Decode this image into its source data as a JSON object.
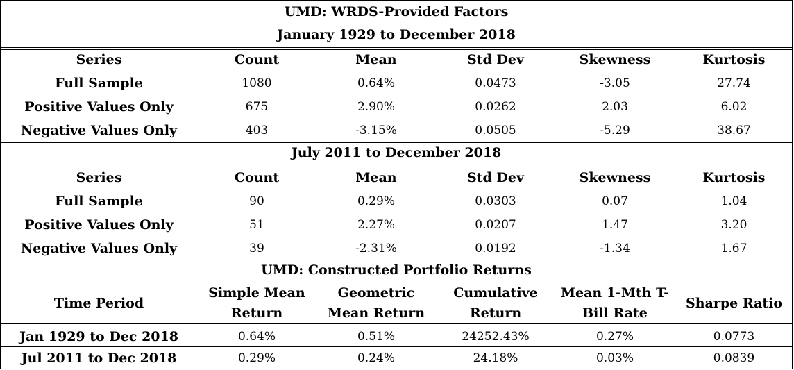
{
  "table_title": "UMD: WRDS-Provided Factors",
  "period1": {
    "title": "January 1929 to December 2018",
    "headers": [
      "Series",
      "Count",
      "Mean",
      "Std Dev",
      "Skewness",
      "Kurtosis"
    ],
    "rows": [
      {
        "series": "Full Sample",
        "count": "1080",
        "mean": "0.64%",
        "std": "0.0473",
        "skew": "-3.05",
        "kurt": "27.74"
      },
      {
        "series": "Positive Values Only",
        "count": "675",
        "mean": "2.90%",
        "std": "0.0262",
        "skew": "2.03",
        "kurt": "6.02"
      },
      {
        "series": "Negative Values Only",
        "count": "403",
        "mean": "-3.15%",
        "std": "0.0505",
        "skew": "-5.29",
        "kurt": "38.67"
      }
    ]
  },
  "period2": {
    "title": "July 2011 to December 2018",
    "headers": [
      "Series",
      "Count",
      "Mean",
      "Std Dev",
      "Skewness",
      "Kurtosis"
    ],
    "rows": [
      {
        "series": "Full Sample",
        "count": "90",
        "mean": "0.29%",
        "std": "0.0303",
        "skew": "0.07",
        "kurt": "1.04"
      },
      {
        "series": "Positive Values Only",
        "count": "51",
        "mean": "2.27%",
        "std": "0.0207",
        "skew": "1.47",
        "kurt": "3.20"
      },
      {
        "series": "Negative Values Only",
        "count": "39",
        "mean": "-2.31%",
        "std": "0.0192",
        "skew": "-1.34",
        "kurt": "1.67"
      }
    ]
  },
  "constructed": {
    "title": "UMD: Constructed Portfolio Returns",
    "headers": [
      {
        "line1": "Time Period",
        "line2": ""
      },
      {
        "line1": "Simple Mean",
        "line2": "Return"
      },
      {
        "line1": "Geometric",
        "line2": "Mean Return"
      },
      {
        "line1": "Cumulative",
        "line2": "Return"
      },
      {
        "line1": "Mean 1-Mth T-",
        "line2": "Bill Rate"
      },
      {
        "line1": "Sharpe Ratio",
        "line2": ""
      }
    ],
    "rows": [
      {
        "period": "Jan 1929 to Dec 2018",
        "simple": "0.64%",
        "geo": "0.51%",
        "cum": "24252.43%",
        "tbill": "0.27%",
        "sharpe": "0.0773"
      },
      {
        "period": "Jul 2011 to Dec 2018",
        "simple": "0.29%",
        "geo": "0.24%",
        "cum": "24.18%",
        "tbill": "0.03%",
        "sharpe": "0.0839"
      }
    ]
  }
}
